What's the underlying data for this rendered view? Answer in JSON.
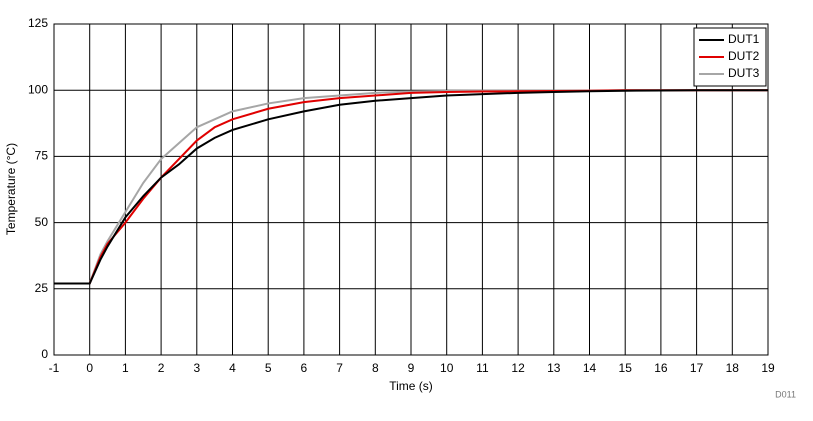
{
  "chart_data": {
    "type": "line",
    "xlabel": "Time (s)",
    "ylabel": "Temperature (°C)",
    "annotation": "D011",
    "x": [
      -1,
      0,
      0.3,
      0.5,
      1,
      1.5,
      2,
      2.5,
      3,
      3.5,
      4,
      5,
      6,
      7,
      8,
      9,
      10,
      11,
      12,
      13,
      14,
      15,
      16,
      17,
      18,
      19
    ],
    "series": [
      {
        "name": "DUT1",
        "color": "#000000",
        "values": [
          27,
          27,
          36,
          41,
          52,
          60,
          67,
          72,
          78,
          82,
          85,
          89,
          92,
          94.5,
          96,
          97,
          98,
          98.5,
          99,
          99.3,
          99.6,
          99.8,
          99.9,
          100,
          100,
          100
        ]
      },
      {
        "name": "DUT2",
        "color": "#e00000",
        "values": [
          27,
          27,
          37,
          42,
          50,
          59,
          67,
          74,
          81,
          86,
          89,
          93,
          95.5,
          97,
          98,
          99,
          99.3,
          99.5,
          99.6,
          99.7,
          99.8,
          100,
          100,
          100,
          100,
          100
        ]
      },
      {
        "name": "DUT3",
        "color": "#a6a6a6",
        "values": [
          27,
          27,
          38,
          43,
          54,
          65,
          74,
          80,
          86,
          89,
          92,
          95,
          97,
          98,
          99,
          99.5,
          99.7,
          99.8,
          99.8,
          99.8,
          99.9,
          100,
          100,
          100,
          100,
          100
        ]
      }
    ],
    "xlim": [
      -1,
      19
    ],
    "xticks": [
      -1,
      0,
      1,
      2,
      3,
      4,
      5,
      6,
      7,
      8,
      9,
      10,
      11,
      12,
      13,
      14,
      15,
      16,
      17,
      18,
      19
    ],
    "ylim": [
      0,
      125
    ],
    "yticks": [
      0,
      25,
      50,
      75,
      100,
      125
    ],
    "grid": true,
    "legend": "upper right"
  }
}
